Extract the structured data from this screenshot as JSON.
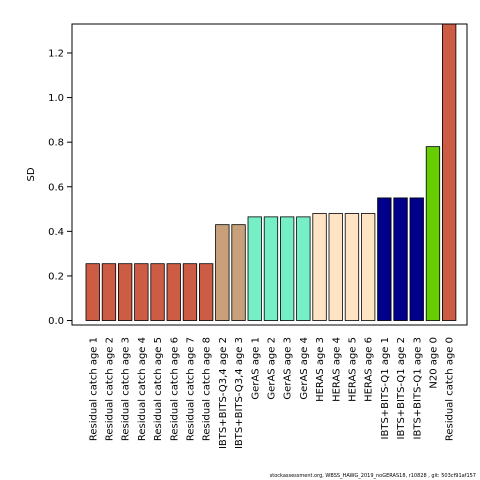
{
  "chart_data": {
    "type": "bar",
    "title": "",
    "xlabel": "",
    "ylabel": "SD",
    "ylim": [
      -0.02,
      1.33
    ],
    "yticks": [
      0.0,
      0.2,
      0.4,
      0.6,
      0.8,
      1.0,
      1.2
    ],
    "ytick_labels": [
      "0.0",
      "0.2",
      "0.4",
      "0.6",
      "0.8",
      "1.0",
      "1.2"
    ],
    "grid": false,
    "legend": "none",
    "categories": [
      "Residual catch age 1",
      "Residual catch age 2",
      "Residual catch age 3",
      "Residual catch age 4",
      "Residual catch age 5",
      "Residual catch age 6",
      "Residual catch age 7",
      "Residual catch age 8",
      "IBTS+BITS-Q3,4 age 2",
      "IBTS+BITS-Q3,4 age 3",
      "GerAS age 1",
      "GerAS age 2",
      "GerAS age 3",
      "GerAS age 4",
      "HERAS age 3",
      "HERAS age 4",
      "HERAS age 5",
      "HERAS age 6",
      "IBTS+BITS-Q1 age 1",
      "IBTS+BITS-Q1 age 2",
      "IBTS+BITS-Q1 age 3",
      "N20 age 0",
      "Residual catch age 0"
    ],
    "values": [
      0.255,
      0.255,
      0.255,
      0.255,
      0.255,
      0.255,
      0.255,
      0.255,
      0.43,
      0.43,
      0.465,
      0.465,
      0.465,
      0.465,
      0.48,
      0.48,
      0.48,
      0.48,
      0.55,
      0.55,
      0.55,
      0.78,
      1.33
    ],
    "colors": [
      "#cd5c45",
      "#cd5c45",
      "#cd5c45",
      "#cd5c45",
      "#cd5c45",
      "#cd5c45",
      "#cd5c45",
      "#cd5c45",
      "#c8a07a",
      "#c8a07a",
      "#76eec6",
      "#76eec6",
      "#76eec6",
      "#76eec6",
      "#ffe4c4",
      "#ffe4c4",
      "#ffe4c4",
      "#ffe4c4",
      "#00008b",
      "#00008b",
      "#00008b",
      "#66cd00",
      "#cd5c45"
    ]
  },
  "footer_text": "stockassessment.org, WBSS_HAWG_2019_noGERAS18, r10828 , git: 503cf91af157"
}
